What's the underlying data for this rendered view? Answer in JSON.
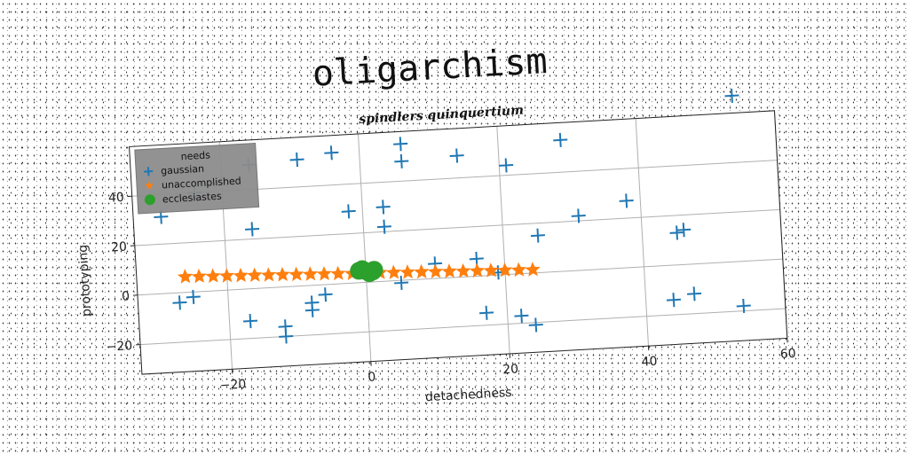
{
  "main_title": "oligarchism",
  "chart_data": {
    "type": "scatter",
    "title": "spindlers quinquertium",
    "xlabel": "detachedness",
    "ylabel": "prototyping",
    "xlim": [
      -33,
      60
    ],
    "ylim": [
      -32,
      60
    ],
    "xticks": [
      -20,
      0,
      20,
      40,
      60
    ],
    "yticks": [
      -20,
      0,
      20,
      40
    ],
    "grid": true,
    "legend": {
      "title": "needs",
      "placement": "top-left",
      "entries": [
        "gaussian",
        "unaccomplished",
        "ecclesiastes"
      ]
    },
    "series": [
      {
        "name": "gaussian",
        "marker": "plus",
        "color": "#1f77b4",
        "points": [
          [
            -29,
            31
          ],
          [
            -24,
            40
          ],
          [
            -27,
            -4
          ],
          [
            -25,
            -2
          ],
          [
            -16,
            24
          ],
          [
            -16,
            50
          ],
          [
            -17,
            -13
          ],
          [
            -12,
            -16
          ],
          [
            -12,
            -20
          ],
          [
            -9,
            51
          ],
          [
            -8,
            -7
          ],
          [
            -8,
            -10
          ],
          [
            -6,
            -4
          ],
          [
            -4,
            53
          ],
          [
            -2,
            29
          ],
          [
            3,
            30
          ],
          [
            3,
            22
          ],
          [
            6,
            48
          ],
          [
            6,
            55
          ],
          [
            5,
            -1
          ],
          [
            10,
            6
          ],
          [
            14,
            49
          ],
          [
            16,
            7
          ],
          [
            17,
            -15
          ],
          [
            19,
            1
          ],
          [
            21,
            44
          ],
          [
            22,
            -17
          ],
          [
            24,
            -21
          ],
          [
            25,
            15
          ],
          [
            29,
            53
          ],
          [
            31,
            22
          ],
          [
            38,
            27
          ],
          [
            44,
            -14
          ],
          [
            45,
            13
          ],
          [
            46,
            14
          ],
          [
            47,
            -12
          ],
          [
            54,
            -18
          ],
          [
            54,
            67
          ]
        ]
      },
      {
        "name": "unaccomplished",
        "marker": "star",
        "color": "#ff7f0e",
        "points": [
          [
            -26,
            6.3
          ],
          [
            -24,
            6.1
          ],
          [
            -22,
            5.9
          ],
          [
            -20,
            5.7
          ],
          [
            -18,
            5.5
          ],
          [
            -16,
            5.3
          ],
          [
            -14,
            5.1
          ],
          [
            -12,
            4.9
          ],
          [
            -10,
            4.7
          ],
          [
            -8,
            4.5
          ],
          [
            -6,
            4.3
          ],
          [
            -4,
            4.1
          ],
          [
            -2,
            3.9
          ],
          [
            2,
            3.5
          ],
          [
            4,
            3.3
          ],
          [
            6,
            3.1
          ],
          [
            8,
            2.9
          ],
          [
            10,
            2.7
          ],
          [
            12,
            2.5
          ],
          [
            14,
            2.3
          ],
          [
            16,
            2.1
          ],
          [
            18,
            1.9
          ],
          [
            20,
            1.7
          ],
          [
            22,
            1.5
          ],
          [
            24,
            1.3
          ]
        ]
      },
      {
        "name": "ecclesiastes",
        "marker": "circle",
        "color": "#2ca02c",
        "points": [
          [
            -1,
            4.8
          ],
          [
            0,
            4.5
          ],
          [
            1,
            4.2
          ],
          [
            0.5,
            3.6
          ],
          [
            -0.5,
            5.4
          ],
          [
            1.2,
            4.9
          ]
        ]
      }
    ]
  }
}
